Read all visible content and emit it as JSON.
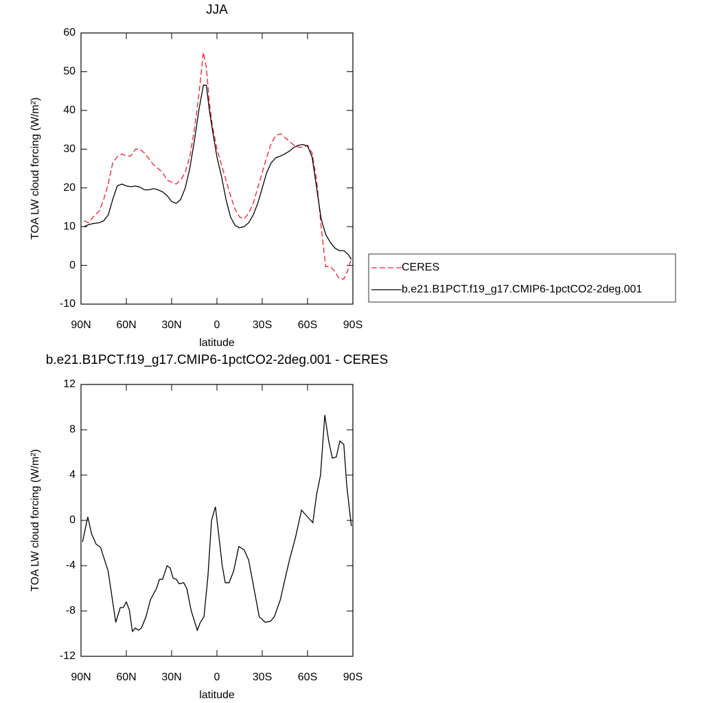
{
  "chart_data": [
    {
      "type": "line",
      "title": "JJA",
      "xlabel": "latitude",
      "ylabel": "TOA LW cloud forcing (W/m²)",
      "x": [
        88,
        85,
        82,
        78,
        75,
        72,
        69,
        66,
        63,
        60,
        57,
        54,
        51,
        48,
        45,
        42,
        39,
        36,
        33,
        30,
        27,
        24,
        21,
        18,
        15,
        12,
        9,
        7,
        5,
        3,
        0,
        -3,
        -6,
        -9,
        -12,
        -15,
        -18,
        -21,
        -24,
        -27,
        -30,
        -33,
        -36,
        -39,
        -42,
        -45,
        -48,
        -51,
        -54,
        -57,
        -60,
        -63,
        -66,
        -69,
        -72,
        -75,
        -78,
        -81,
        -84,
        -87,
        -89
      ],
      "series": [
        {
          "name": "CERES",
          "color": "#e8202a",
          "dashed": true,
          "values": [
            11.5,
            11,
            12.5,
            14,
            17,
            21,
            26.5,
            28,
            28.8,
            28.2,
            28.2,
            30,
            30,
            29,
            27.5,
            26,
            25,
            24,
            22,
            21.5,
            21,
            22,
            24,
            28,
            35,
            44,
            55,
            51,
            42,
            36,
            30,
            26,
            22,
            18,
            14.5,
            12.5,
            12,
            13.5,
            16,
            20,
            24,
            28,
            31.5,
            33.5,
            34,
            33,
            32,
            31,
            30.5,
            30.5,
            31,
            29,
            22,
            10,
            -0.3,
            -0.3,
            -1.5,
            -3.5,
            -3.5,
            -1,
            2
          ]
        },
        {
          "name": "b.e21.B1PCT.f19_g17.CMIP6-1pctCO2-2deg.001",
          "color": "#000000",
          "dashed": false,
          "values": [
            10,
            10.5,
            10.8,
            11,
            11.5,
            13,
            17,
            20.5,
            21,
            20.5,
            20.3,
            20.5,
            20.2,
            19.5,
            19.5,
            19.8,
            19.5,
            19,
            18,
            16.5,
            16,
            17,
            20,
            25,
            32,
            40,
            46.5,
            46.5,
            40,
            35,
            28,
            23,
            17,
            12.5,
            10.3,
            9.7,
            10,
            11,
            13,
            16,
            20,
            24,
            26.5,
            27.8,
            28.2,
            28.8,
            29.5,
            30.5,
            31,
            31.2,
            30.8,
            28,
            20,
            12,
            8,
            6,
            4.5,
            3.8,
            3.8,
            2.8,
            1.5
          ]
        }
      ],
      "xlim": [
        90,
        -90
      ],
      "xticks": [
        {
          "value": 90,
          "label": "90N"
        },
        {
          "value": 60,
          "label": "60N"
        },
        {
          "value": 30,
          "label": "30N"
        },
        0,
        {
          "value": -30,
          "label": "30S"
        },
        {
          "value": -60,
          "label": "60S"
        },
        {
          "value": -90,
          "label": "90S"
        }
      ],
      "ylim": [
        -10,
        60
      ],
      "yticks": [
        -10,
        0,
        10,
        20,
        30,
        40,
        50,
        60
      ],
      "legend": "right"
    },
    {
      "type": "line",
      "title": "b.e21.B1PCT.f19_g17.CMIP6-1pctCO2-2deg.001 - CERES",
      "xlabel": "latitude",
      "ylabel": "TOA LW cloud forcing (W/m²)",
      "x": [
        89,
        85.5,
        83,
        80,
        77,
        72,
        67,
        64,
        62,
        60,
        58,
        56,
        54,
        52,
        50,
        47,
        44,
        40,
        38,
        36,
        33,
        31,
        29,
        27,
        25,
        22,
        20,
        17,
        13,
        11,
        8.6,
        6,
        3.6,
        1,
        -1.8,
        -3.5,
        -5.5,
        -8,
        -11,
        -14.5,
        -18,
        -21,
        -24.5,
        -28,
        -32,
        -35.5,
        -38,
        -42,
        -44.5,
        -48,
        -52,
        -56,
        -60,
        -63.5,
        -66,
        -68.6,
        -71.4,
        -74,
        -76.4,
        -79,
        -81.4,
        -84,
        -86,
        -89
      ],
      "series": [
        {
          "color": "#000000",
          "dashed": false,
          "values": [
            -1.9,
            0.3,
            -1.2,
            -2.1,
            -2.4,
            -4.5,
            -9,
            -7.7,
            -7.7,
            -7.2,
            -7.9,
            -9.8,
            -9.5,
            -9.7,
            -9.5,
            -8.5,
            -7,
            -6,
            -5.2,
            -5.2,
            -4,
            -4.2,
            -5.1,
            -5.2,
            -5.6,
            -5.5,
            -6,
            -8,
            -9.7,
            -9,
            -8.5,
            -5,
            0,
            1.2,
            -2,
            -4,
            -5.5,
            -5.5,
            -4.5,
            -2.3,
            -2.6,
            -3.5,
            -6,
            -8.5,
            -9,
            -8.9,
            -8.5,
            -7,
            -5.5,
            -3.5,
            -1.5,
            0.9,
            0.3,
            -0.2,
            2.3,
            4,
            9.3,
            7,
            5.5,
            5.6,
            7,
            6.7,
            3,
            -0.5
          ]
        }
      ],
      "xlim": [
        90,
        -90
      ],
      "xticks": [
        {
          "value": 90,
          "label": "90N"
        },
        {
          "value": 60,
          "label": "60N"
        },
        {
          "value": 30,
          "label": "30N"
        },
        0,
        {
          "value": -30,
          "label": "30S"
        },
        {
          "value": -60,
          "label": "60S"
        },
        {
          "value": -90,
          "label": "90S"
        }
      ],
      "ylim": [
        -12,
        12
      ],
      "yticks": [
        -12,
        -8,
        -4,
        0,
        4,
        8,
        12
      ]
    }
  ]
}
